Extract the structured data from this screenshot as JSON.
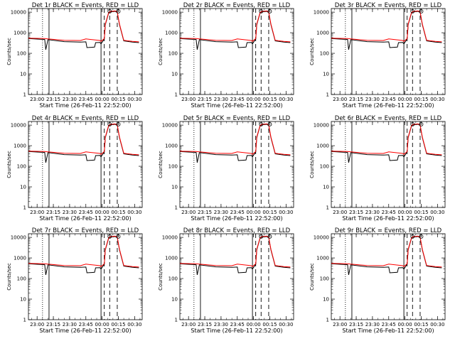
{
  "figure": {
    "xlabel": "Start Time (26-Feb-11 22:52:00)",
    "ylabel": "Counts/sec"
  },
  "chart_data": [
    {
      "type": "line",
      "title": "Det 1r BLACK = Events, RED = LLD"
    },
    {
      "type": "line",
      "title": "Det 2r BLACK = Events, RED = LLD"
    },
    {
      "type": "line",
      "title": "Det 3r BLACK = Events, RED = LLD"
    },
    {
      "type": "line",
      "title": "Det 4r BLACK = Events, RED = LLD"
    },
    {
      "type": "line",
      "title": "Det 5r BLACK = Events, RED = LLD"
    },
    {
      "type": "line",
      "title": "Det 6r BLACK = Events, RED = LLD"
    },
    {
      "type": "line",
      "title": "Det 7r BLACK = Events, RED = LLD"
    },
    {
      "type": "line",
      "title": "Det 8r BLACK = Events, RED = LLD"
    },
    {
      "type": "line",
      "title": "Det 9r BLACK = Events, RED = LLD"
    }
  ],
  "shared": {
    "xlabel": "Start Time (26-Feb-11 22:52:00)",
    "ylabel": "Counts/sec",
    "x_unit": "time (HH:MM)",
    "x_range": [
      "22:52",
      "00:37"
    ],
    "y_scale": "log",
    "ylim": [
      1,
      15000
    ],
    "x_ticks": [
      "23:00",
      "23:15",
      "23:30",
      "23:45",
      "00:00",
      "00:15",
      "00:30"
    ],
    "y_ticks": [
      "1",
      "10",
      "100",
      "1000",
      "10000"
    ],
    "colors": {
      "events": "#000000",
      "lld": "#ff0000"
    },
    "series": [
      {
        "name": "Events",
        "color": "#000000",
        "x": [
          "22:52",
          "23:07",
          "23:08",
          "23:10",
          "23:25",
          "23:40",
          "23:45",
          "23:46",
          "23:53",
          "23:54",
          "23:58",
          "23:59",
          "00:02",
          "00:03",
          "00:06",
          "00:08",
          "00:10",
          "00:12",
          "00:14",
          "00:16",
          "00:20",
          "00:28",
          "00:34"
        ],
        "y": [
          520,
          470,
          150,
          460,
          370,
          350,
          360,
          190,
          200,
          330,
          340,
          290,
          500,
          2500,
          9000,
          10500,
          10500,
          11000,
          9500,
          2500,
          400,
          350,
          330
        ]
      },
      {
        "name": "LLD",
        "color": "#ff0000",
        "x": [
          "22:52",
          "23:07",
          "23:10",
          "23:25",
          "23:40",
          "23:45",
          "23:53",
          "23:58",
          "23:59",
          "00:02",
          "00:03",
          "00:06",
          "00:08",
          "00:10",
          "00:12",
          "00:14",
          "00:16",
          "00:20",
          "00:28",
          "00:34"
        ],
        "y": [
          540,
          520,
          500,
          430,
          420,
          500,
          450,
          420,
          380,
          520,
          2700,
          9500,
          11000,
          11000,
          11500,
          10000,
          2700,
          430,
          380,
          360
        ]
      }
    ],
    "vlines": [
      {
        "x": "23:05",
        "style": "dotted"
      },
      {
        "x": "23:11",
        "style": "solid"
      },
      {
        "x": "23:59",
        "style": "solid"
      },
      {
        "x": "00:02",
        "style": "dashed"
      },
      {
        "x": "00:07",
        "style": "dashed"
      },
      {
        "x": "00:14",
        "style": "dashed"
      }
    ],
    "markers": [
      {
        "x": "00:07",
        "y": 11000,
        "shape": "circle"
      },
      {
        "x": "00:15",
        "y": 11000,
        "shape": "circle"
      }
    ]
  }
}
